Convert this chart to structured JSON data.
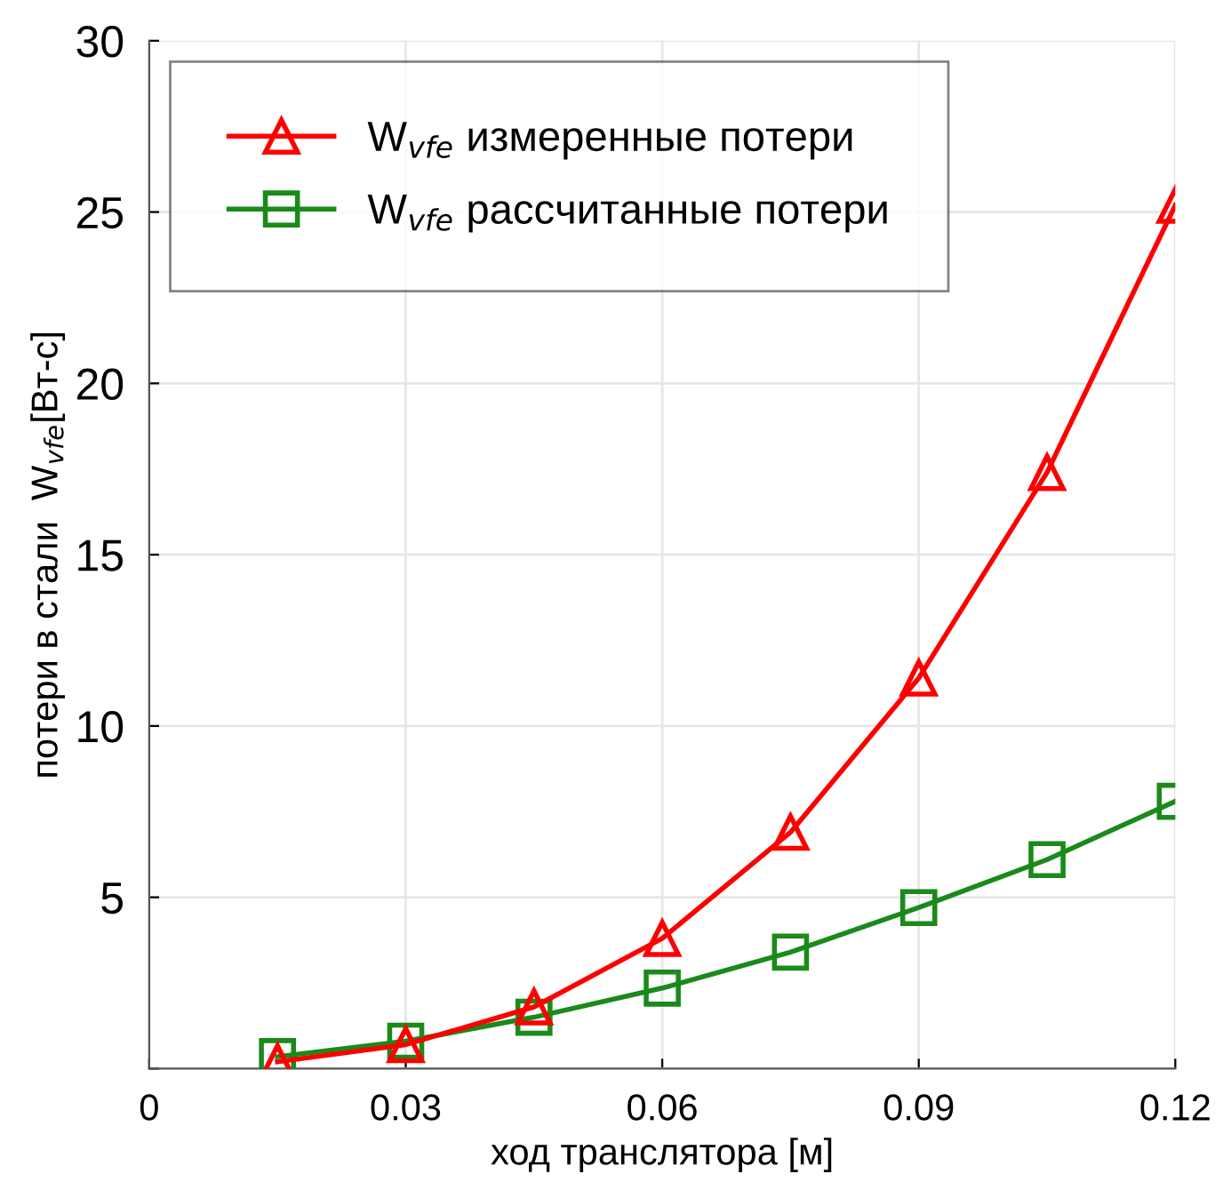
{
  "chart_data": {
    "type": "line",
    "xlabel": "ход транслятора [м]",
    "ylabel": "потери в стали  W$_{vfe}$[Вт-с]",
    "x": [
      0.015,
      0.03,
      0.045,
      0.06,
      0.075,
      0.09,
      0.105,
      0.12
    ],
    "series": [
      {
        "name": "W$_{vfe}$ измеренные потери",
        "color": "#ff0000",
        "marker": "triangle",
        "values": [
          0.2,
          0.7,
          1.8,
          3.8,
          6.9,
          11.4,
          17.4,
          25.2
        ]
      },
      {
        "name": "W$_{vfe}$ рассчитанные потери",
        "color": "#1a8a1a",
        "marker": "square",
        "values": [
          0.35,
          0.8,
          1.5,
          2.35,
          3.4,
          4.7,
          6.1,
          7.8
        ]
      }
    ],
    "xlim": [
      0,
      0.12
    ],
    "ylim": [
      0,
      30
    ],
    "xticks": [
      0,
      0.03,
      0.06,
      0.09,
      0.12
    ],
    "yticks": [
      {
        "value": 0,
        "label": null
      },
      5,
      10,
      15,
      20,
      25,
      30
    ],
    "grid": true,
    "legend": "top left",
    "line_style": "solid"
  }
}
